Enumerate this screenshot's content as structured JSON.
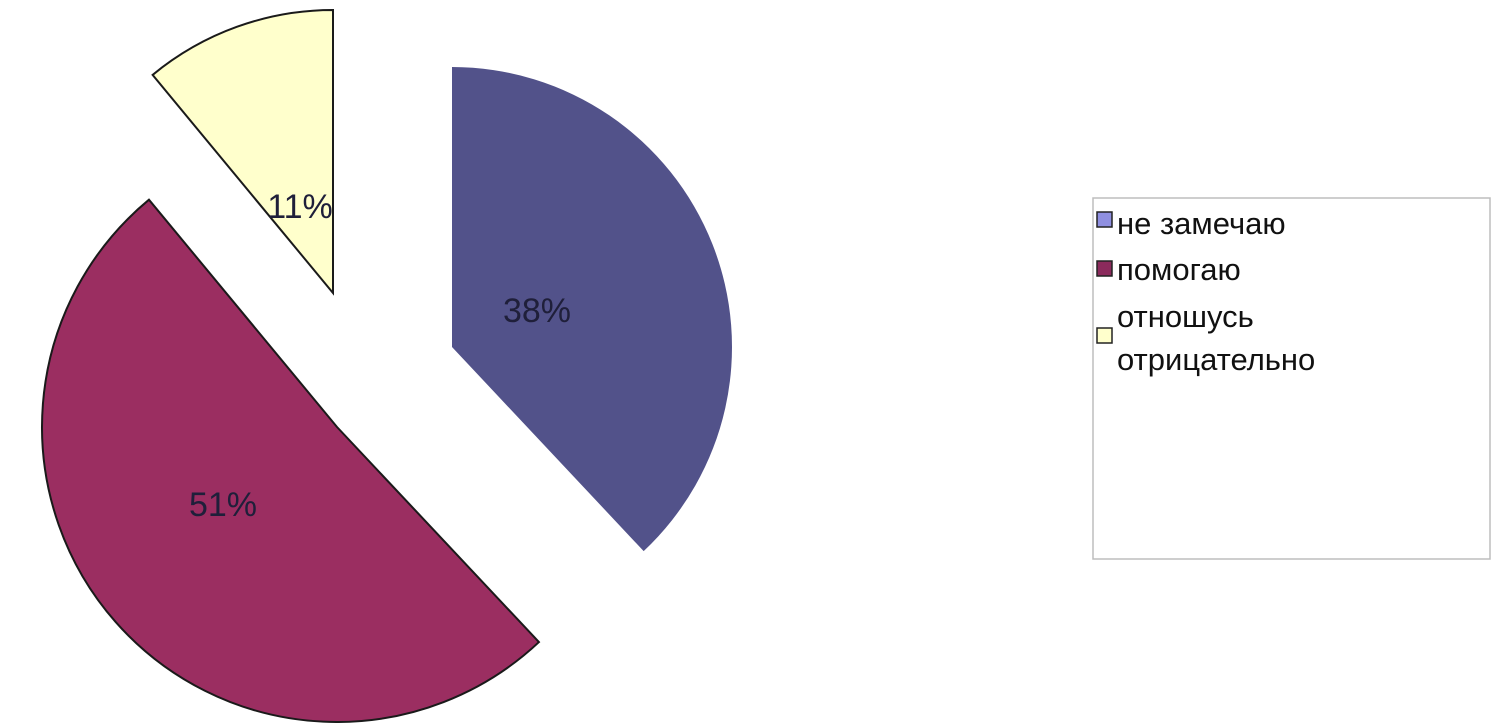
{
  "chart_data": {
    "type": "pie",
    "categories": [
      "не замечаю",
      "помогаю",
      "отношусь отрицательно"
    ],
    "values": [
      38,
      51,
      11
    ],
    "value_labels": [
      "38%",
      "51%",
      "11%"
    ],
    "exploded": true,
    "legend": {
      "placement": "right",
      "items": [
        {
          "label": "не замечаю",
          "lines": [
            "не замечаю"
          ],
          "color": "#8f8fe0"
        },
        {
          "label": "помогаю",
          "lines": [
            "помогаю"
          ],
          "color": "#8b2a5c"
        },
        {
          "label": "отношусь отрицательно",
          "lines": [
            "отношусь",
            "отрицательно"
          ],
          "color": "#ffffcc"
        }
      ]
    },
    "colors": [
      "#52528a",
      "#9b2e61",
      "#ffffcc"
    ]
  }
}
